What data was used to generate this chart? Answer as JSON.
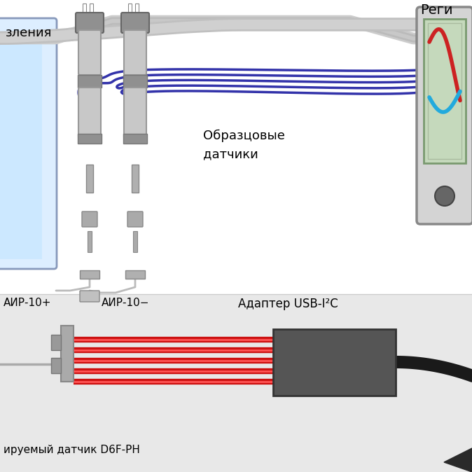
{
  "bg_top": "#ffffff",
  "bg_bot": "#e8e8e8",
  "wire_blue": "#3333aa",
  "wire_gray": "#aaaaaa",
  "wire_red": "#cc1111",
  "wire_red_bg": "#ff6666",
  "sensor_body": "#c0c0c0",
  "sensor_dark": "#888888",
  "sensor_collar": "#999999",
  "sensor_light": "#d0d0d0",
  "device_body": "#d4d4d4",
  "device_screen_bg": "#c5d9bc",
  "device_screen_border": "#7a9a70",
  "device_button": "#666666",
  "adapter_color": "#555555",
  "cable_black": "#1a1a1a",
  "label_obrazcovye": "Образцовые\nдатчики",
  "label_air_plus": "АИР-10+",
  "label_air_minus": "АИР-10-",
  "label_adapter": "Адаптер USB-I²C",
  "label_sensor": "ируемый датчик D6F-PH",
  "label_vlenia": "зления",
  "label_regis": "Реги"
}
